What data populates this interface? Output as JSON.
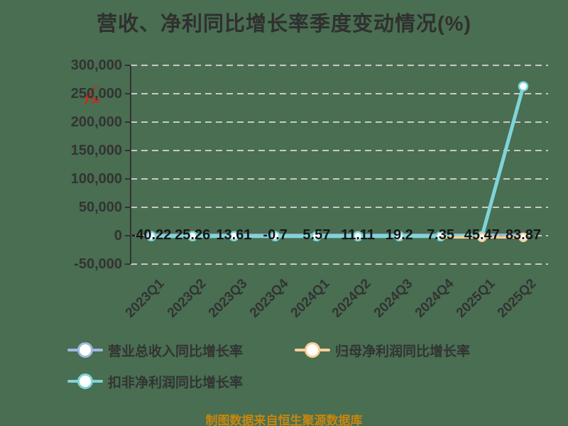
{
  "title": {
    "text": "营收、净利同比增长率季度变动情况(%)"
  },
  "footer": {
    "text": "制图数据来自恒生聚源数据库"
  },
  "colors": {
    "background": "#496E51",
    "title_text": "#303030",
    "axis": "#333333",
    "grid": "#C9C9C9",
    "tick_label": "#333333",
    "value_label": "#161616",
    "footer_text": "#C8860D",
    "red_mark": "#C22D20",
    "marker_fill": "#FFFFFF"
  },
  "legend": [
    {
      "label": "营业总收入同比增长率",
      "color": "#9FB7DF"
    },
    {
      "label": "归母净利润同比增长率",
      "color": "#F6CE98"
    },
    {
      "label": "扣非净利润同比增长率",
      "color": "#7FD4DA"
    }
  ],
  "annotations": {
    "red_mark": "small red scribble overlapping the 250,000 axis label"
  },
  "chart_data": {
    "type": "line",
    "title": "营收、净利同比增长率季度变动情况(%)",
    "categories": [
      "2023Q1",
      "2023Q2",
      "2023Q3",
      "2023Q4",
      "2024Q1",
      "2024Q2",
      "2024Q3",
      "2024Q4",
      "2025Q1",
      "2025Q2"
    ],
    "y_ticks": [
      300000,
      250000,
      200000,
      150000,
      100000,
      50000,
      0,
      -50000
    ],
    "y_tick_labels": [
      "300,000",
      "250,000",
      "200,000",
      "150,000",
      "100,000",
      "50,000",
      "0",
      "-50,000"
    ],
    "ylim": [
      -50000,
      300000
    ],
    "grid": "horizontal dashed",
    "legend_position": "bottom-left",
    "value_labels": [
      "-40.22",
      "25.26",
      "13.61",
      "-0.7",
      "5.57",
      "11.11",
      "19.2",
      "7.35",
      "45.47",
      "83.87"
    ],
    "series": [
      {
        "name": "营业总收入同比增长率",
        "color": "#9FB7DF",
        "values": [
          -40.22,
          25.26,
          13.61,
          -0.7,
          5.57,
          11.11,
          19.2,
          7.35,
          45.47,
          83.87
        ],
        "labels_shown": true
      },
      {
        "name": "归母净利润同比增长率",
        "color": "#F6CE98",
        "values": [
          0,
          0,
          0,
          0,
          0,
          0,
          0,
          0,
          0,
          0
        ],
        "note": "reads ~0 at this axis scale; line only discernible from 2024Q4 onward"
      },
      {
        "name": "扣非净利润同比增长率",
        "color": "#7FD4DA",
        "values": [
          0,
          0,
          0,
          0,
          0,
          0,
          0,
          0,
          0,
          264000
        ],
        "note": "flat near 0 through 2025Q1, spikes to ~264,000 (est. from gridlines) at 2025Q2; peak unlabeled"
      }
    ]
  }
}
